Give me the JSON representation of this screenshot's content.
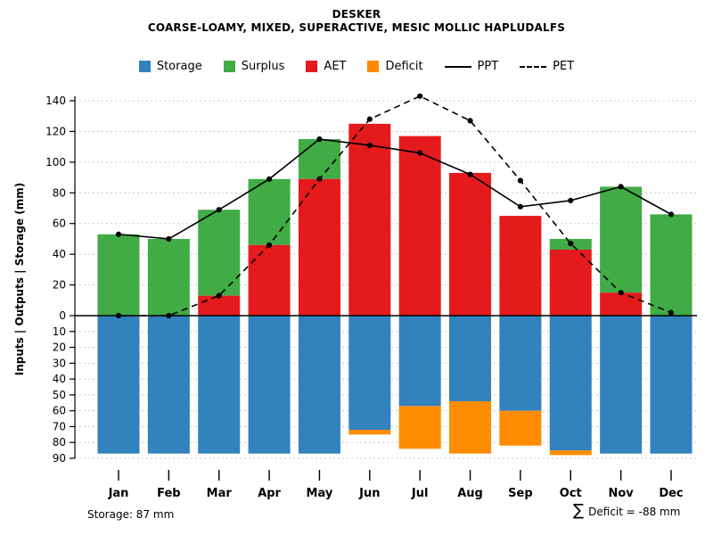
{
  "header": {
    "title": "DESKER",
    "subtitle": "COARSE-LOAMY, MIXED, SUPERACTIVE, MESIC MOLLIC HAPLUDALFS"
  },
  "legend": {
    "items": [
      {
        "label": "Storage",
        "type": "box",
        "color": "#3182BD"
      },
      {
        "label": "Surplus",
        "type": "box",
        "color": "#41AB45"
      },
      {
        "label": "AET",
        "type": "box",
        "color": "#E41A1C"
      },
      {
        "label": "Deficit",
        "type": "box",
        "color": "#FF8C00"
      },
      {
        "label": "PPT",
        "type": "line-solid",
        "color": "#000000"
      },
      {
        "label": "PET",
        "type": "line-dashed",
        "color": "#000000"
      }
    ]
  },
  "axes": {
    "y_label": "Inputs | Outputs | Storage  (mm)",
    "y_upper_ticks": [
      0,
      20,
      40,
      60,
      80,
      100,
      120,
      140
    ],
    "y_lower_ticks": [
      10,
      20,
      30,
      40,
      50,
      60,
      70,
      80,
      90
    ]
  },
  "chart_data": {
    "type": "bar",
    "title": "DESKER",
    "subtitle": "COARSE-LOAMY, MIXED, SUPERACTIVE, MESIC MOLLIC HAPLUDALFS",
    "ylabel": "Inputs | Outputs | Storage  (mm)",
    "y_upper_max": 140,
    "y_lower_max": 90,
    "grid": true,
    "legend_position": "top-center",
    "categories": [
      "Jan",
      "Feb",
      "Mar",
      "Apr",
      "May",
      "Jun",
      "Jul",
      "Aug",
      "Sep",
      "Oct",
      "Nov",
      "Dec"
    ],
    "series": [
      {
        "name": "AET",
        "color": "#E41A1C",
        "direction": "up",
        "values": [
          0,
          0,
          13,
          46,
          89,
          125,
          117,
          93,
          65,
          43,
          15,
          0
        ]
      },
      {
        "name": "Surplus",
        "color": "#41AB45",
        "direction": "up",
        "values": [
          53,
          50,
          56,
          43,
          26,
          0,
          0,
          0,
          0,
          7,
          69,
          66
        ]
      },
      {
        "name": "Storage",
        "color": "#3182BD",
        "direction": "down",
        "values": [
          87,
          87,
          87,
          87,
          87,
          72,
          57,
          54,
          60,
          85,
          87,
          87
        ]
      },
      {
        "name": "Deficit",
        "color": "#FF8C00",
        "direction": "down",
        "values": [
          0,
          0,
          0,
          0,
          0,
          3,
          27,
          33,
          22,
          3,
          0,
          0
        ]
      }
    ],
    "lines": [
      {
        "name": "PPT",
        "style": "solid",
        "values": [
          53,
          50,
          69,
          89,
          115,
          111,
          106,
          92,
          71,
          75,
          84,
          66
        ]
      },
      {
        "name": "PET",
        "style": "dashed",
        "values": [
          0,
          0,
          13,
          46,
          89,
          128,
          143,
          127,
          88,
          47,
          15,
          2
        ]
      }
    ]
  },
  "footer": {
    "storage_note": "Storage: 87 mm",
    "deficit_sigma": "∑",
    "deficit_note": "Deficit = -88 mm"
  }
}
